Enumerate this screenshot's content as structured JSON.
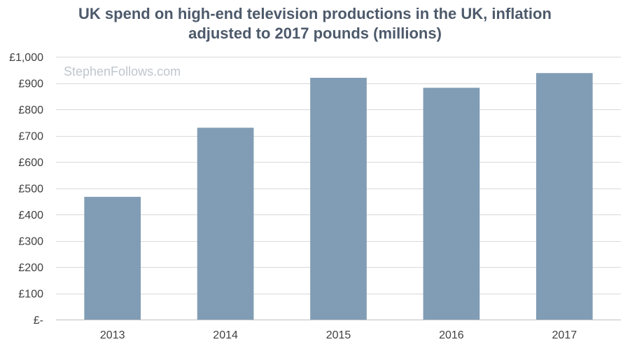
{
  "chart_data": {
    "type": "bar",
    "title": [
      "UK spend on high-end television productions in the UK, inflation",
      "adjusted to 2017 pounds (millions)"
    ],
    "watermark": "StephenFollows.com",
    "categories": [
      "2013",
      "2014",
      "2015",
      "2016",
      "2017"
    ],
    "values": [
      467,
      730,
      920,
      882,
      938
    ],
    "ylim": [
      0,
      1000
    ],
    "yticks": [
      0,
      100,
      200,
      300,
      400,
      500,
      600,
      700,
      800,
      900,
      1000
    ],
    "ytick_labels": [
      "£-",
      "£100",
      "£200",
      "£300",
      "£400",
      "£500",
      "£600",
      "£700",
      "£800",
      "£900",
      "£1,000"
    ],
    "xlabel": "",
    "ylabel": "",
    "grid": true,
    "legend": "none",
    "bar_color": "#819db5"
  }
}
